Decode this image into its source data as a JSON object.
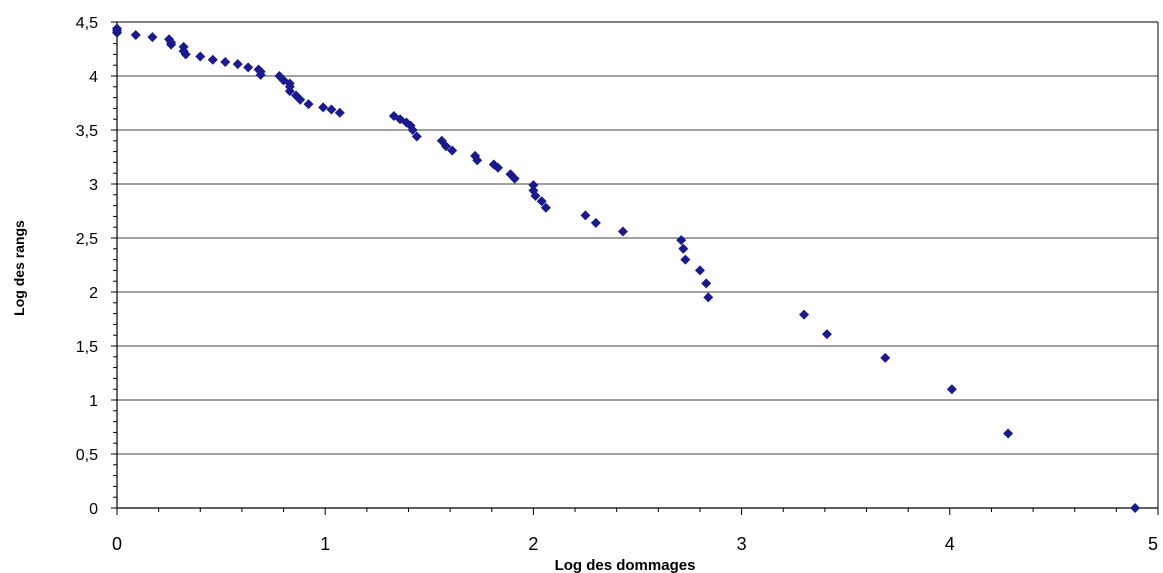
{
  "chart_data": {
    "type": "scatter",
    "title": "",
    "xlabel": "Log des dommages",
    "ylabel": "Log des rangs",
    "xlim": [
      0,
      5
    ],
    "ylim": [
      0,
      4.5
    ],
    "x_ticks": [
      "0",
      "1",
      "2",
      "3",
      "4",
      "5"
    ],
    "y_ticks": [
      "0",
      "0,5",
      "1",
      "1,5",
      "2",
      "2,5",
      "3",
      "3,5",
      "4",
      "4,5"
    ],
    "grid": "horizontal",
    "marker": "diamond",
    "marker_color": "#1a1a8c",
    "series": [
      {
        "x": [
          0.0,
          0.0,
          0.0,
          0.09,
          0.17,
          0.25,
          0.26,
          0.26,
          0.32,
          0.32,
          0.33,
          0.4,
          0.46,
          0.52,
          0.58,
          0.63,
          0.68,
          0.69,
          0.69,
          0.78,
          0.8,
          0.83,
          0.83,
          0.83,
          0.86,
          0.88,
          0.92,
          0.99,
          1.03,
          1.07,
          1.33,
          1.36,
          1.39,
          1.41,
          1.42,
          1.44,
          1.56,
          1.58,
          1.61,
          1.72,
          1.73,
          1.81,
          1.83,
          1.89,
          1.91,
          2.0,
          2.0,
          2.01,
          2.04,
          2.06,
          2.25,
          2.3,
          2.43,
          2.71,
          2.72,
          2.73,
          2.8,
          2.83,
          2.84,
          3.3,
          3.41,
          3.69,
          4.01,
          4.28,
          4.89
        ],
        "y": [
          4.44,
          4.42,
          4.4,
          4.38,
          4.36,
          4.34,
          4.31,
          4.29,
          4.27,
          4.23,
          4.2,
          4.18,
          4.15,
          4.13,
          4.11,
          4.08,
          4.06,
          4.04,
          4.01,
          4.0,
          3.96,
          3.93,
          3.9,
          3.86,
          3.82,
          3.78,
          3.74,
          3.71,
          3.69,
          3.66,
          3.63,
          3.6,
          3.57,
          3.54,
          3.5,
          3.44,
          3.4,
          3.35,
          3.31,
          3.26,
          3.22,
          3.18,
          3.15,
          3.09,
          3.05,
          2.99,
          2.94,
          2.89,
          2.84,
          2.78,
          2.71,
          2.64,
          2.56,
          2.48,
          2.4,
          2.3,
          2.2,
          2.08,
          1.95,
          1.79,
          1.61,
          1.39,
          1.1,
          0.69,
          0.0
        ]
      }
    ]
  }
}
